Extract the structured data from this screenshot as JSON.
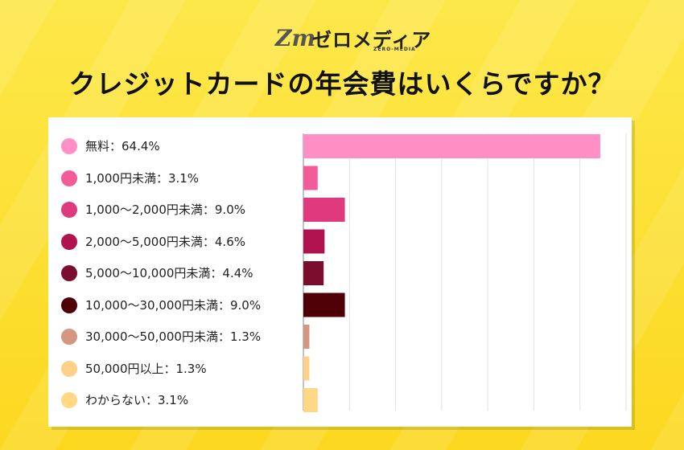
{
  "brand": {
    "name": "ゼロメディア",
    "sub": "ZERO-MEDIA",
    "mark": "Zm"
  },
  "title": "クレジットカードの年会費はいくらですか？",
  "chart_data": {
    "type": "bar",
    "orientation": "horizontal",
    "categories": [
      "無料：64.4%",
      "1,000円未満：3.1%",
      "1,000〜2,000円未満：9.0%",
      "2,000〜5,000円未満：4.6%",
      "5,000〜10,000円未満：4.4%",
      "10,000〜30,000円未満：9.0%",
      "30,000〜50,000円未満：1.3%",
      "50,000円以上：1.3%",
      "わからない：3.1%"
    ],
    "values": [
      64.4,
      3.1,
      9.0,
      4.6,
      4.4,
      9.0,
      1.3,
      1.3,
      3.1
    ],
    "colors": [
      "#ff8fc4",
      "#f25c98",
      "#e03a7f",
      "#b0134f",
      "#7b0d2e",
      "#4f0007",
      "#d69782",
      "#ffd089",
      "#ffd886"
    ],
    "xlim": [
      0,
      70
    ],
    "grid": true,
    "legend_position": "left"
  }
}
